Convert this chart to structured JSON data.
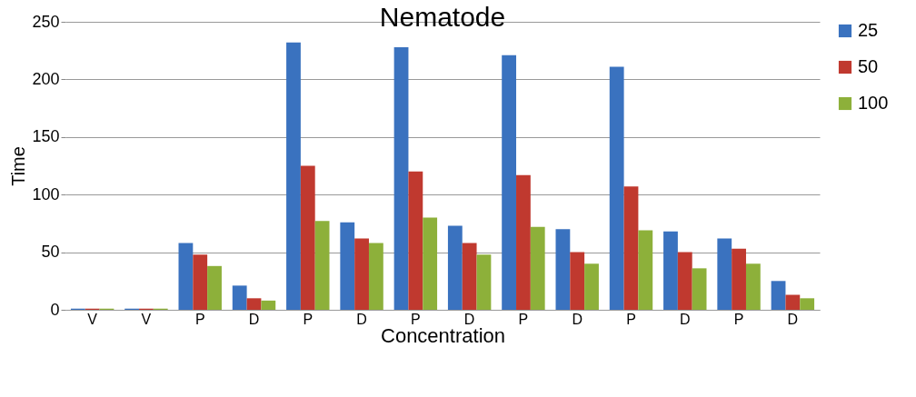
{
  "chart_data": {
    "type": "bar",
    "title": "Nematode",
    "xlabel": "Concentration",
    "ylabel": "Time",
    "categories": [
      "V",
      "V",
      "P",
      "D",
      "P",
      "D",
      "P",
      "D",
      "P",
      "D",
      "P",
      "D",
      "P",
      "D"
    ],
    "series": [
      {
        "name": "25",
        "color": "#3a72bf",
        "values": [
          1,
          1,
          58,
          21,
          232,
          76,
          228,
          73,
          221,
          70,
          211,
          68,
          62,
          25
        ]
      },
      {
        "name": "50",
        "color": "#c0392f",
        "values": [
          1,
          1,
          48,
          10,
          125,
          62,
          120,
          58,
          117,
          50,
          107,
          50,
          53,
          13
        ]
      },
      {
        "name": "100",
        "color": "#8db03a",
        "values": [
          1,
          1,
          38,
          8,
          77,
          58,
          80,
          48,
          72,
          40,
          69,
          36,
          40,
          10
        ]
      }
    ],
    "ylim": [
      0,
      250
    ],
    "yticks": [
      0,
      50,
      100,
      150,
      200,
      250
    ],
    "grid": "y",
    "legend": "right"
  }
}
